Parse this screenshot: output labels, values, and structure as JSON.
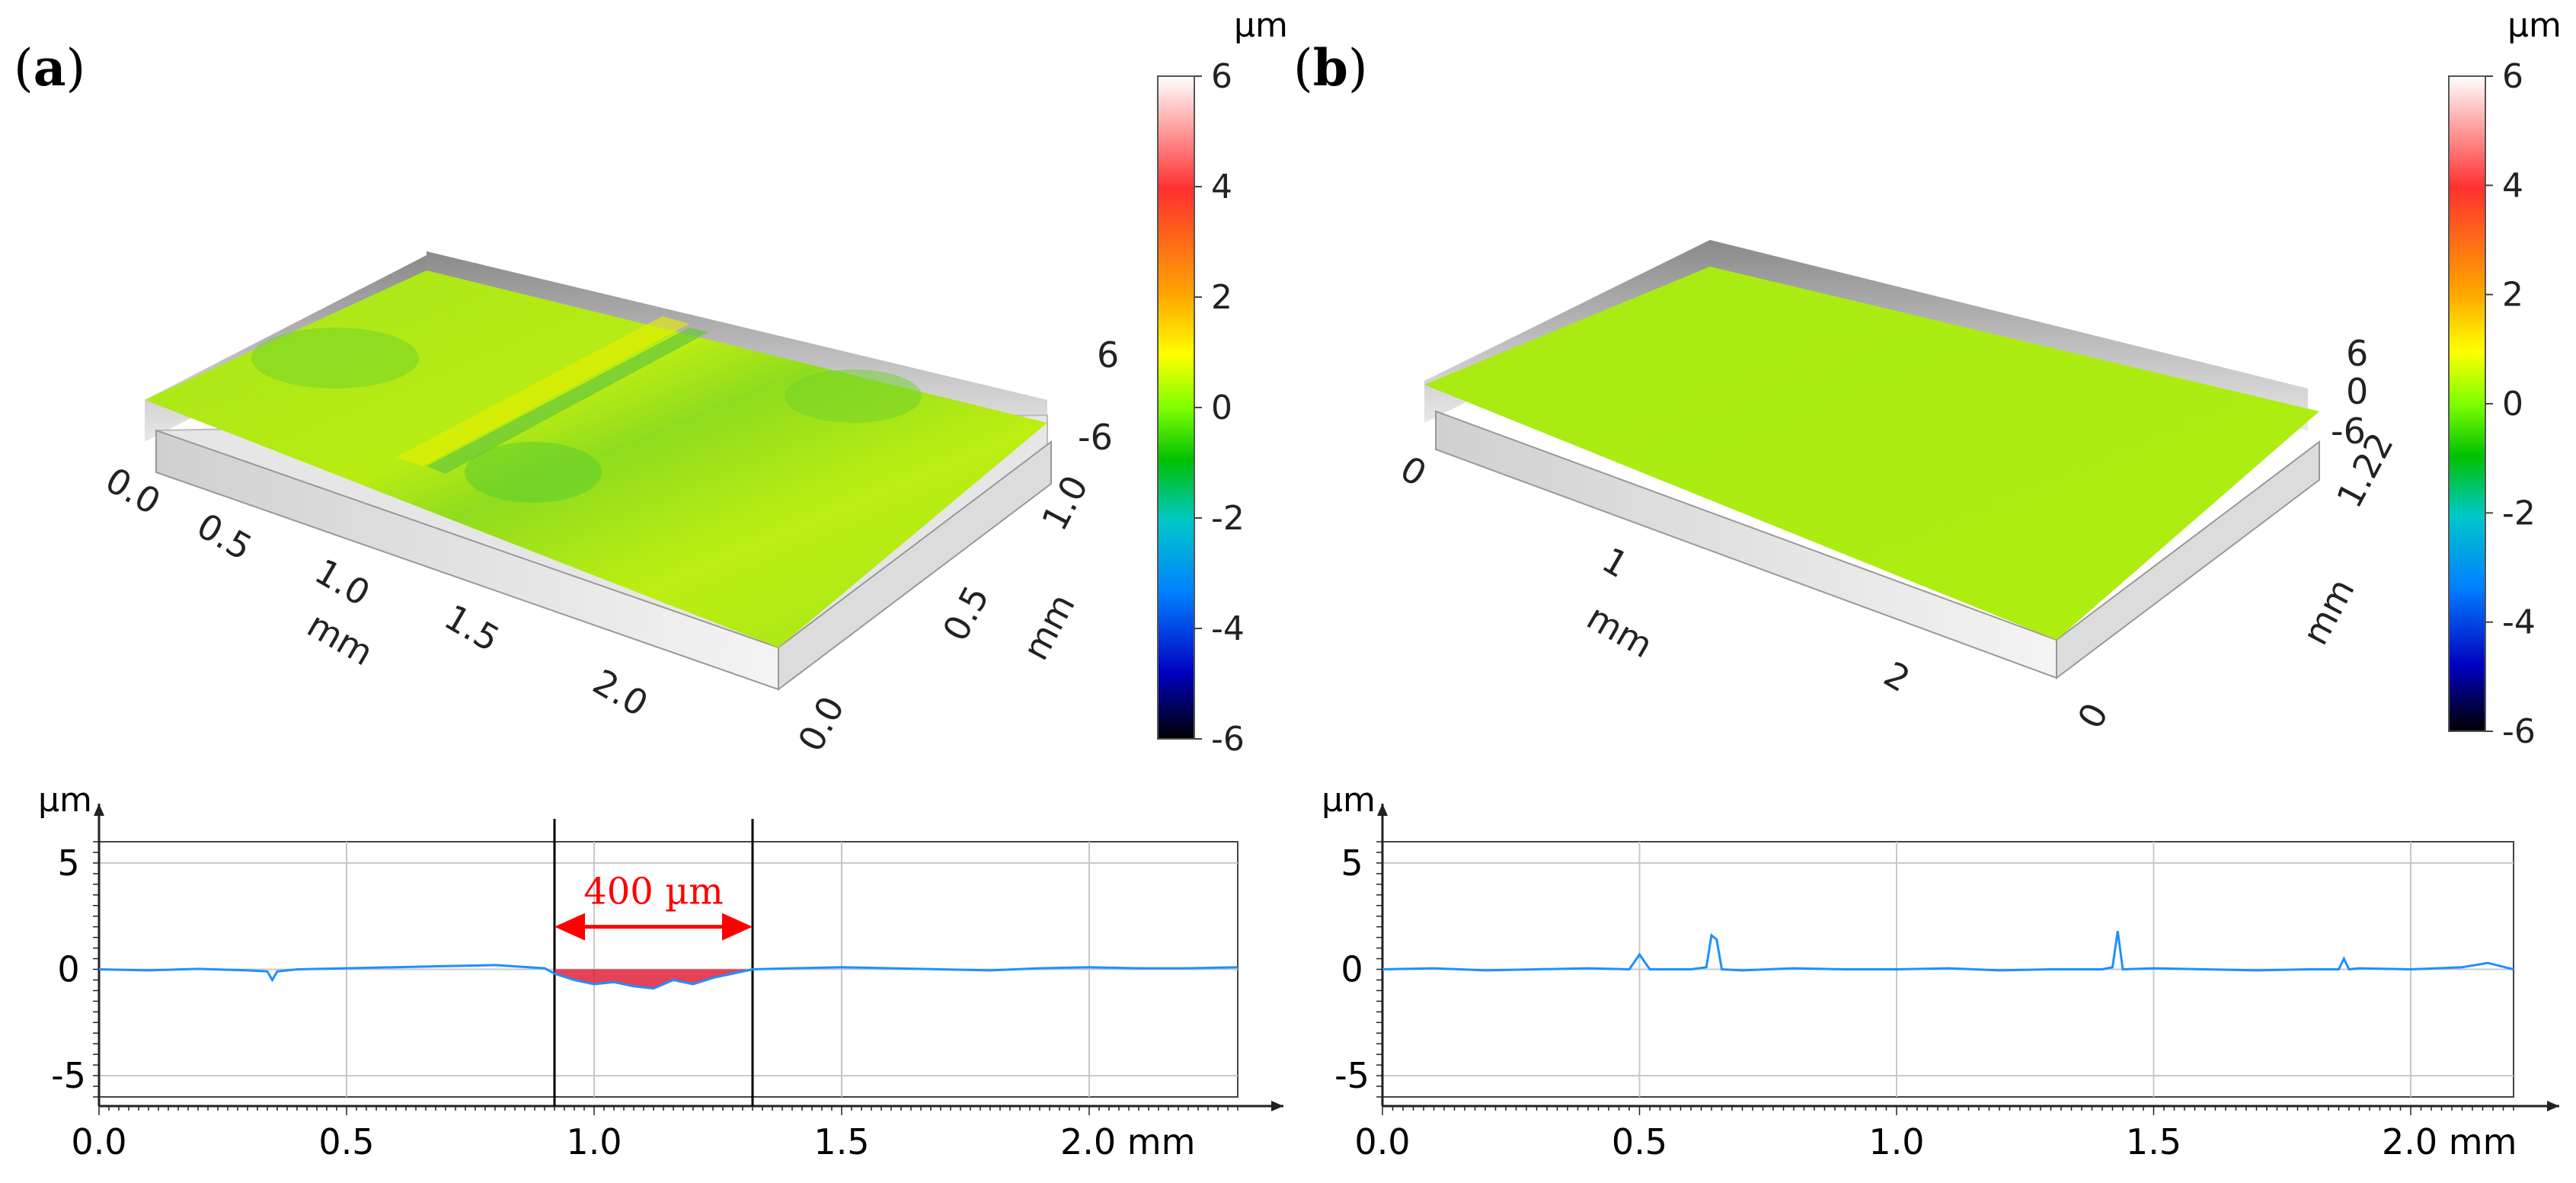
{
  "panels": [
    {
      "label": "(a)",
      "label_parts": {
        "open": "(",
        "letter": "a",
        "close": ")"
      },
      "surface": {
        "x_ticks": [
          "0.0",
          "0.5",
          "1.0",
          "1.5",
          "2.0"
        ],
        "x_unit": "mm",
        "y_ticks": [
          "0.0",
          "0.5",
          "1.0"
        ],
        "y_unit": "mm",
        "z_ticks": [
          "6",
          "-6"
        ]
      },
      "colorbar": {
        "unit": "µm",
        "ticks": [
          "6",
          "4",
          "2",
          "0",
          "-2",
          "-4",
          "-6"
        ]
      },
      "annotation": {
        "text": "400 µm",
        "start_mm": 0.92,
        "end_mm": 1.32,
        "color": "#ff0000"
      }
    },
    {
      "label": "(b)",
      "label_parts": {
        "open": "(",
        "letter": "b",
        "close": ")"
      },
      "surface": {
        "x_ticks": [
          "0",
          "1",
          "2"
        ],
        "x_unit": "mm",
        "y_ticks": [
          "0",
          "1.22"
        ],
        "y_unit": "mm",
        "z_ticks": [
          "6",
          "0",
          "-6"
        ]
      },
      "colorbar": {
        "unit": "µm",
        "ticks": [
          "6",
          "4",
          "2",
          "0",
          "-2",
          "-4",
          "-6"
        ]
      }
    }
  ],
  "chart_data": [
    {
      "type": "line",
      "panel": "a",
      "ylabel": "µm",
      "xlabel": "mm",
      "xlim": [
        0,
        2.3
      ],
      "ylim": [
        -6,
        6
      ],
      "x_tick_labels": [
        "0.0",
        "0.5",
        "1.0",
        "1.5",
        "2.0 mm"
      ],
      "y_tick_labels": [
        "5",
        "0",
        "-5"
      ],
      "x_ticks": [
        0,
        0.5,
        1.0,
        1.5,
        2.0
      ],
      "y_ticks": [
        5,
        0,
        -5
      ],
      "line_color": "#1e90ff",
      "series": [
        {
          "name": "profile",
          "x": [
            0,
            0.1,
            0.2,
            0.3,
            0.34,
            0.35,
            0.36,
            0.4,
            0.5,
            0.6,
            0.7,
            0.8,
            0.9,
            0.92,
            0.96,
            1.0,
            1.04,
            1.08,
            1.12,
            1.16,
            1.2,
            1.24,
            1.28,
            1.32,
            1.4,
            1.5,
            1.6,
            1.7,
            1.8,
            1.9,
            2.0,
            2.1,
            2.2,
            2.3
          ],
          "y": [
            0,
            -0.05,
            0.02,
            -0.05,
            -0.1,
            -0.5,
            -0.1,
            0,
            0.05,
            0.1,
            0.15,
            0.2,
            0.05,
            -0.2,
            -0.5,
            -0.7,
            -0.6,
            -0.8,
            -0.9,
            -0.5,
            -0.7,
            -0.4,
            -0.2,
            0,
            0.05,
            0.1,
            0.05,
            0,
            -0.05,
            0.05,
            0.1,
            0.05,
            0.05,
            0.1
          ]
        }
      ],
      "markers_x": [
        0.92,
        1.32
      ]
    },
    {
      "type": "line",
      "panel": "b",
      "ylabel": "µm",
      "xlabel": "mm",
      "xlim": [
        0,
        2.2
      ],
      "ylim": [
        -6,
        6
      ],
      "x_tick_labels": [
        "0.0",
        "0.5",
        "1.0",
        "1.5",
        "2.0 mm"
      ],
      "y_tick_labels": [
        "5",
        "0",
        "-5"
      ],
      "x_ticks": [
        0,
        0.5,
        1.0,
        1.5,
        2.0
      ],
      "y_ticks": [
        5,
        0,
        -5
      ],
      "line_color": "#1e90ff",
      "series": [
        {
          "name": "profile",
          "x": [
            0,
            0.1,
            0.2,
            0.3,
            0.4,
            0.48,
            0.5,
            0.52,
            0.6,
            0.63,
            0.64,
            0.65,
            0.66,
            0.7,
            0.8,
            0.9,
            1.0,
            1.1,
            1.2,
            1.3,
            1.4,
            1.42,
            1.43,
            1.44,
            1.5,
            1.6,
            1.7,
            1.8,
            1.86,
            1.87,
            1.88,
            1.9,
            2.0,
            2.1,
            2.15,
            2.2
          ],
          "y": [
            0,
            0.05,
            -0.05,
            0,
            0.05,
            0,
            0.7,
            0,
            0,
            0.1,
            1.6,
            1.4,
            0,
            -0.05,
            0.05,
            0,
            0,
            0.05,
            -0.05,
            0,
            0,
            0.1,
            1.8,
            0,
            0.05,
            0,
            -0.05,
            0,
            0,
            0.5,
            0,
            0.05,
            0,
            0.1,
            0.3,
            0
          ]
        }
      ]
    }
  ]
}
